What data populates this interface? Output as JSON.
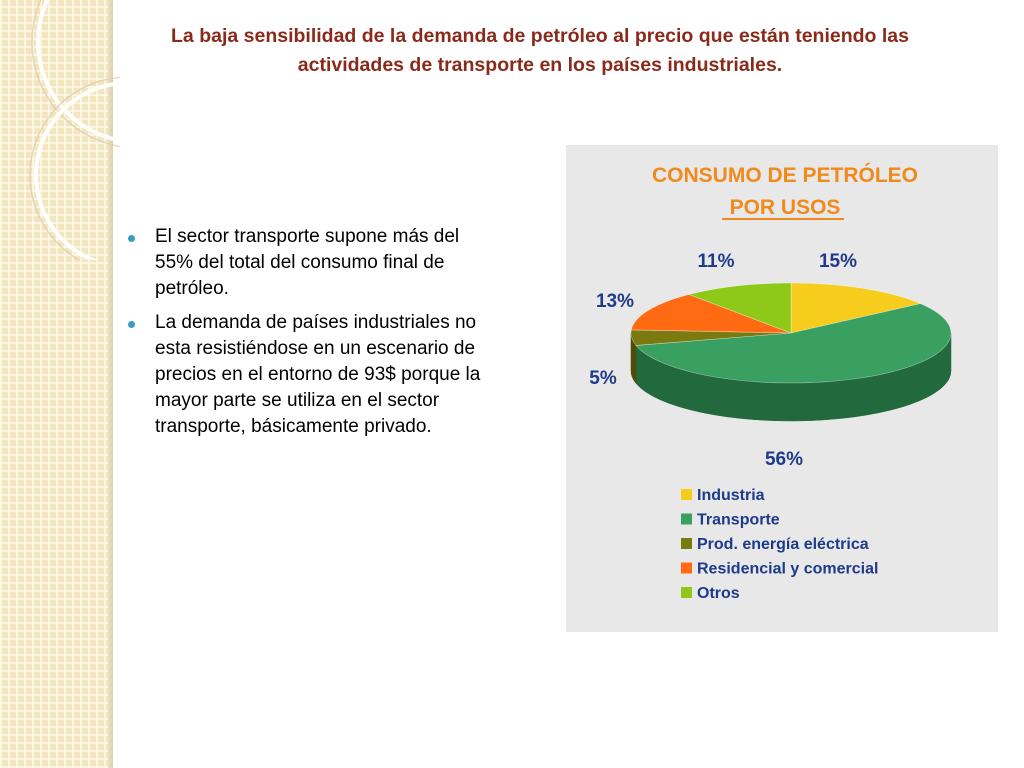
{
  "slide": {
    "title_lines": [
      "La baja sensibilidad de la demanda de petróleo al precio que están teniendo las",
      "actividades de transporte en los países industriales."
    ],
    "bullets": [
      {
        "lines": [
          "El sector transporte supone más del",
          "55% del total del consumo final de",
          "petróleo."
        ]
      },
      {
        "lines": [
          "La demanda de países industriales no",
          "esta resistiéndose en un escenario de",
          "precios en el entorno de 93$ porque la",
          "mayor parte se utiliza en el sector",
          "transporte, básicamente privado."
        ]
      }
    ]
  },
  "chart_data": {
    "type": "pie",
    "title_lines": [
      "CONSUMO DE PETRÓLEO",
      "POR USOS"
    ],
    "categories": [
      "Industria",
      "Transporte",
      "Prod. energía eléctrica",
      "Residencial y comercial",
      "Otros"
    ],
    "values": [
      15,
      56,
      5,
      13,
      11
    ],
    "value_labels": [
      "15%",
      "56%",
      "5%",
      "13%",
      "11%"
    ],
    "colors": [
      "#f6cd1c",
      "#3aa062",
      "#7a7a10",
      "#ff6a12",
      "#8ec91a"
    ],
    "side_colors": [
      "#b9940f",
      "#226a3e",
      "#4d4d08",
      "#b84a0a",
      "#5f8a10"
    ],
    "title_color": "#f08a1c",
    "label_color": "#1e3a8a",
    "legend_position": "bottom"
  }
}
